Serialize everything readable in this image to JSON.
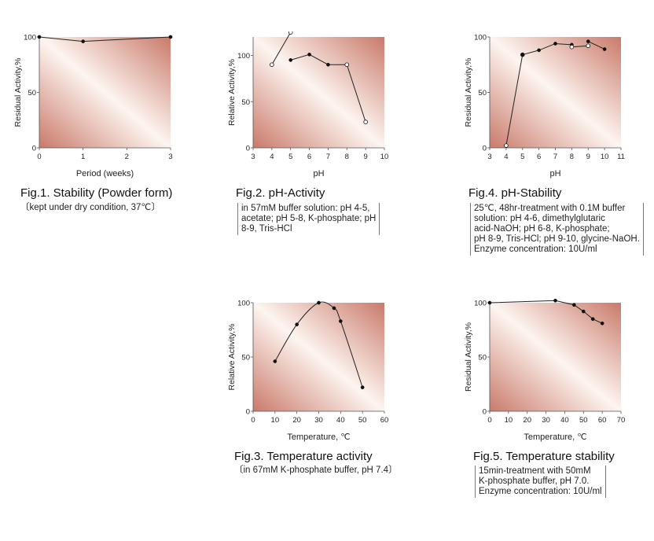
{
  "colors": {
    "plot_light": "#fdf5f0",
    "plot_dark": "#c97a6a",
    "line": "#222222",
    "marker_filled": "#111111",
    "marker_open": "#ffffff"
  },
  "chart_data": [
    {
      "id": "fig1",
      "type": "line",
      "caption": "Fig.1. Stability (Powder form)",
      "note_lines": [
        "〔kept under dry condition, 37℃〕"
      ],
      "xlabel": "Period (weeks)",
      "ylabel": "Residual Activity,%",
      "xlim": [
        0,
        3
      ],
      "ylim": [
        0,
        100
      ],
      "x_ticks": [
        0,
        1,
        2,
        3
      ],
      "y_ticks": [
        0,
        50,
        100
      ],
      "series": [
        {
          "marker": "filled",
          "x": [
            0,
            1,
            3
          ],
          "y": [
            100,
            96,
            100
          ]
        }
      ]
    },
    {
      "id": "fig2",
      "type": "line",
      "caption": "Fig.2. pH-Activity",
      "note_lines": [
        "in 57mM buffer solution: pH 4-5,",
        "acetate; pH 5-8, K-phosphate; pH",
        "8-9, Tris-HCl"
      ],
      "xlabel": "pH",
      "ylabel": "Relative Activity,%",
      "xlim": [
        3,
        10
      ],
      "ylim": [
        0,
        120
      ],
      "x_ticks": [
        3,
        4,
        5,
        6,
        7,
        8,
        9,
        10
      ],
      "y_ticks": [
        0,
        50,
        100
      ],
      "series": [
        {
          "marker": "open",
          "x": [
            4,
            5
          ],
          "y": [
            90,
            125
          ]
        },
        {
          "marker": "filled",
          "x": [
            5,
            6,
            7,
            8
          ],
          "y": [
            95,
            101,
            90,
            90
          ]
        },
        {
          "marker": "open",
          "x": [
            8,
            9
          ],
          "y": [
            90,
            28
          ]
        }
      ]
    },
    {
      "id": "fig3",
      "type": "line",
      "caption": "Fig.3. Temperature activity",
      "note_lines": [
        "〔in 67mM K-phosphate buffer, pH 7.4〕"
      ],
      "xlabel": "Temperature, ℃",
      "ylabel": "Relative Activity,%",
      "xlim": [
        0,
        60
      ],
      "ylim": [
        0,
        100
      ],
      "x_ticks": [
        0,
        10,
        20,
        30,
        40,
        50,
        60
      ],
      "y_ticks": [
        0,
        50,
        100
      ],
      "series": [
        {
          "marker": "filled",
          "smooth": true,
          "x": [
            10,
            20,
            30,
            37,
            40,
            50
          ],
          "y": [
            46,
            80,
            100,
            95,
            83,
            22
          ]
        }
      ]
    },
    {
      "id": "fig4",
      "type": "line",
      "caption": "Fig.4. pH-Stability",
      "note_lines": [
        "25℃, 48hr-treatment with 0.1M buffer",
        "solution: pH 4-6, dimethylglutaric",
        "acid-NaOH; pH 6-8, K-phosphate;",
        "pH 8-9, Tris-HCl; pH 9-10, glycine-NaOH.",
        "Enzyme concentration: 10U/ml"
      ],
      "xlabel": "pH",
      "ylabel": "Residual Activity,%",
      "xlim": [
        3,
        11
      ],
      "ylim": [
        0,
        100
      ],
      "x_ticks": [
        3,
        4,
        5,
        6,
        7,
        8,
        9,
        10,
        11
      ],
      "y_ticks": [
        0,
        50,
        100
      ],
      "series": [
        {
          "marker": "open",
          "x": [
            4,
            5
          ],
          "y": [
            2,
            84
          ]
        },
        {
          "marker": "filled",
          "x": [
            5,
            6,
            7,
            8
          ],
          "y": [
            84,
            88,
            94,
            93
          ]
        },
        {
          "marker": "open",
          "x": [
            8,
            9
          ],
          "y": [
            91,
            92
          ]
        },
        {
          "marker": "filled",
          "x": [
            9,
            10
          ],
          "y": [
            96,
            89
          ]
        }
      ]
    },
    {
      "id": "fig5",
      "type": "line",
      "caption": "Fig.5. Temperature stability",
      "note_lines": [
        "15min-treatment with 50mM",
        "K-phosphate buffer, pH 7.0.",
        "Enzyme concentration: 10U/ml"
      ],
      "xlabel": "Temperature, ℃",
      "ylabel": "Residual Activity,%",
      "xlim": [
        0,
        70
      ],
      "ylim": [
        0,
        100
      ],
      "x_ticks": [
        0,
        10,
        20,
        30,
        40,
        50,
        60,
        70
      ],
      "y_ticks": [
        0,
        50,
        100
      ],
      "series": [
        {
          "marker": "filled",
          "x": [
            0,
            35,
            45,
            50,
            55,
            60
          ],
          "y": [
            100,
            102,
            98,
            92,
            85,
            81
          ]
        }
      ]
    }
  ]
}
